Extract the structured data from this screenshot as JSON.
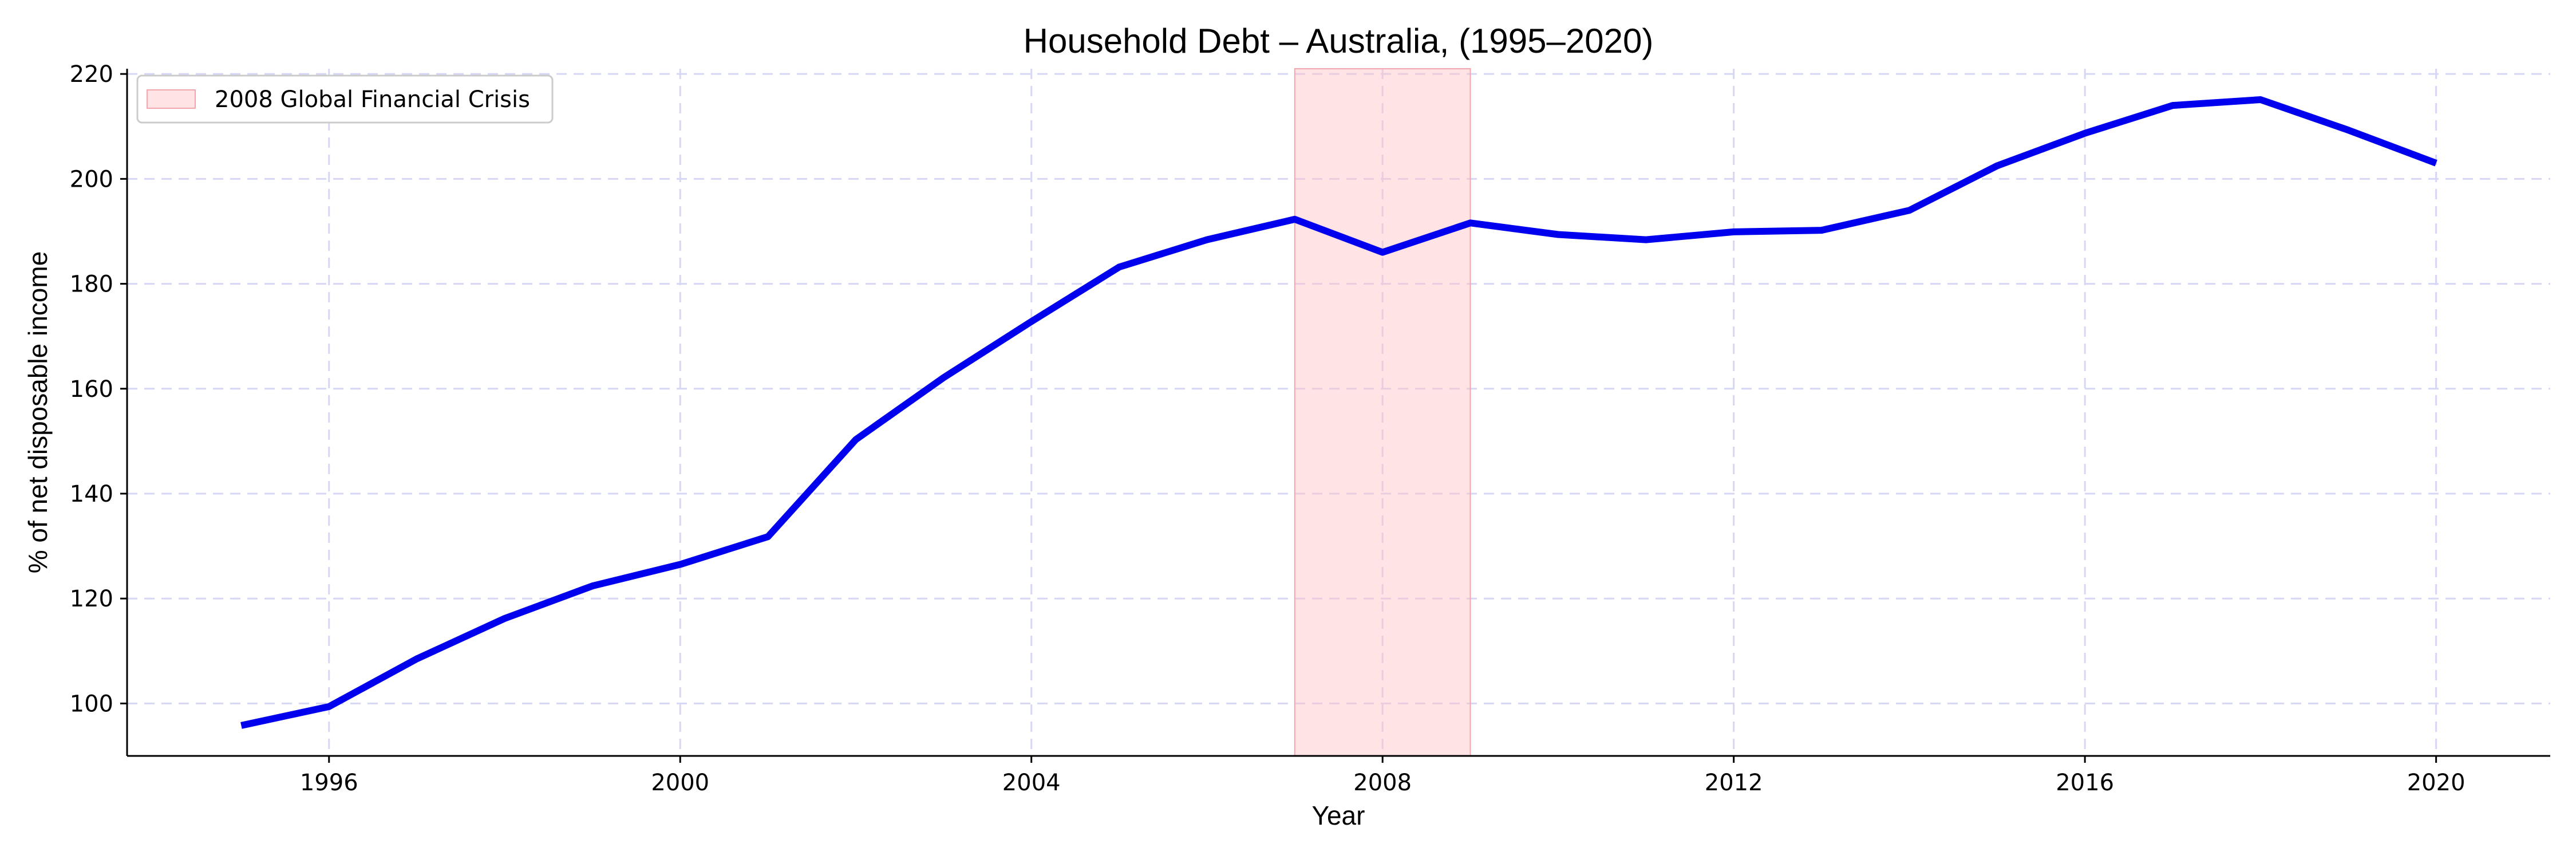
{
  "chart_data": {
    "type": "line",
    "title": "Household Debt – Australia, (1995–2020)",
    "xlabel": "Year",
    "ylabel": "% of net disposable income",
    "xlim": [
      1993.7,
      2021.3
    ],
    "ylim": [
      90,
      221
    ],
    "x_ticks": [
      1996,
      2000,
      2004,
      2008,
      2012,
      2016,
      2020
    ],
    "y_ticks": [
      100,
      120,
      140,
      160,
      180,
      200,
      220
    ],
    "grid": true,
    "legend_position": "top-left",
    "series": [
      {
        "color": "#0000ee",
        "x": [
          1995,
          1996,
          1997,
          1998,
          1999,
          2000,
          2001,
          2002,
          2003,
          2004,
          2005,
          2006,
          2007,
          2008,
          2009,
          2010,
          2011,
          2012,
          2013,
          2014,
          2015,
          2016,
          2017,
          2018,
          2019,
          2020
        ],
        "y": [
          95.8,
          99.4,
          108.5,
          116.2,
          122.4,
          126.5,
          131.8,
          150.3,
          162.1,
          172.8,
          183.2,
          188.4,
          192.3,
          186.0,
          191.6,
          189.4,
          188.4,
          189.9,
          190.2,
          194.0,
          202.5,
          208.7,
          214.0,
          215.1,
          209.3,
          203.0
        ]
      }
    ],
    "shaded_regions": [
      {
        "label": "2008 Global Financial Crisis",
        "x_start": 2007,
        "x_end": 2009,
        "color": "#ffc0c6"
      }
    ]
  }
}
